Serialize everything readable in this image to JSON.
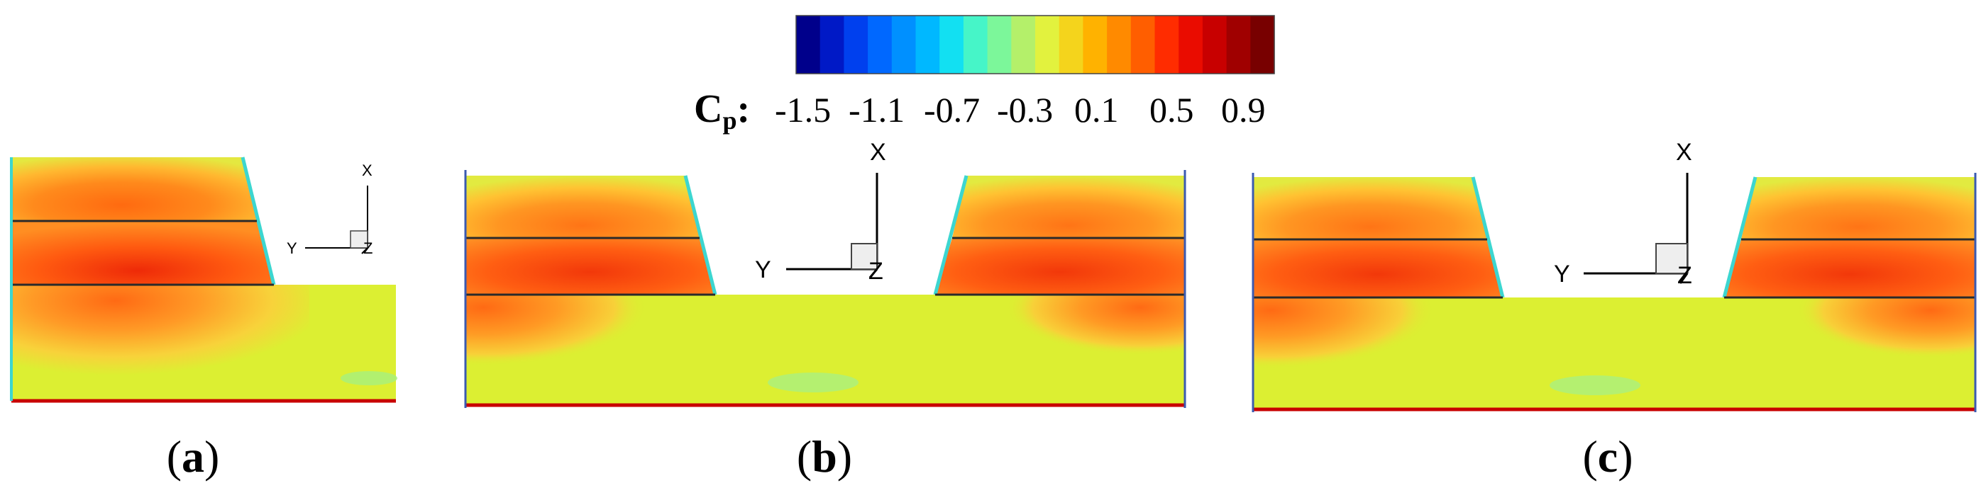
{
  "colorbar": {
    "label_main": "C",
    "label_sub": "p",
    "label_suffix": ":",
    "ticks": [
      "-1.5",
      "-1.1",
      "-0.7",
      "-0.3",
      "0.1",
      "0.5",
      "0.9"
    ],
    "colors": [
      "#00008b",
      "#0019c6",
      "#0040ee",
      "#0068ff",
      "#0090ff",
      "#00b8ff",
      "#12e0f2",
      "#46f5c8",
      "#7cf79a",
      "#b4f06a",
      "#e2f23e",
      "#f4d41c",
      "#ffb200",
      "#ff8a00",
      "#ff5e00",
      "#ff2c00",
      "#ea0c00",
      "#c80000",
      "#a00000",
      "#780000"
    ]
  },
  "panels": [
    {
      "label_open": "(",
      "label_letter": "a",
      "label_close": ")"
    },
    {
      "label_open": "(",
      "label_letter": "b",
      "label_close": ")"
    },
    {
      "label_open": "(",
      "label_letter": "c",
      "label_close": ")"
    }
  ],
  "axes": {
    "x": "X",
    "y": "Y",
    "z": "Z"
  }
}
